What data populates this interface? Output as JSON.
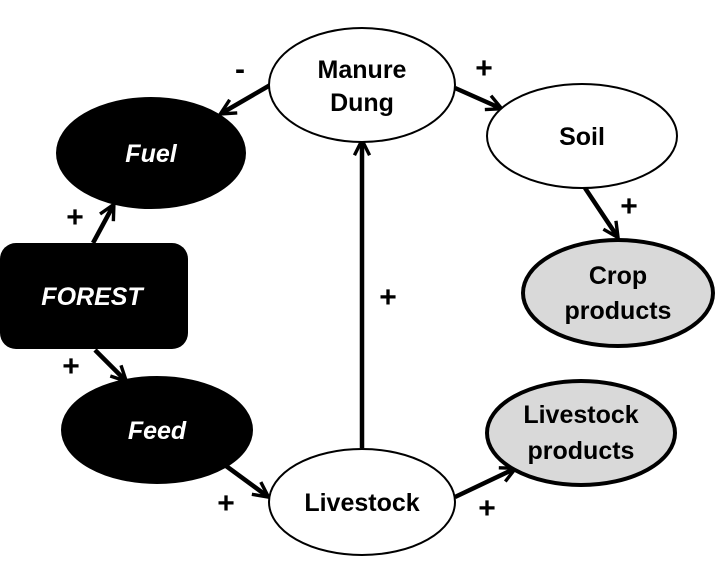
{
  "nodes": {
    "manure": {
      "line1": "Manure",
      "line2": "Dung"
    },
    "fuel": "Fuel",
    "soil": "Soil",
    "forest": "FOREST",
    "crop": {
      "line1": "Crop",
      "line2": "products"
    },
    "feed": "Feed",
    "livestock_products": {
      "line1": "Livestock",
      "line2": "products"
    },
    "livestock": "Livestock"
  },
  "edges": {
    "manure_to_fuel": {
      "sign": "-"
    },
    "manure_to_soil": {
      "sign": "+"
    },
    "soil_to_crop": {
      "sign": "+"
    },
    "forest_to_fuel": {
      "sign": "+"
    },
    "forest_to_feed": {
      "sign": "+"
    },
    "livestock_to_manure": {
      "sign": "+"
    },
    "feed_to_livestock": {
      "sign": "+"
    },
    "livestock_to_products": {
      "sign": "+"
    }
  },
  "colors": {
    "dark_node": "#000000",
    "light_node": "#ffffff",
    "product_node": "#d9d9d9",
    "stroke": "#000000"
  }
}
